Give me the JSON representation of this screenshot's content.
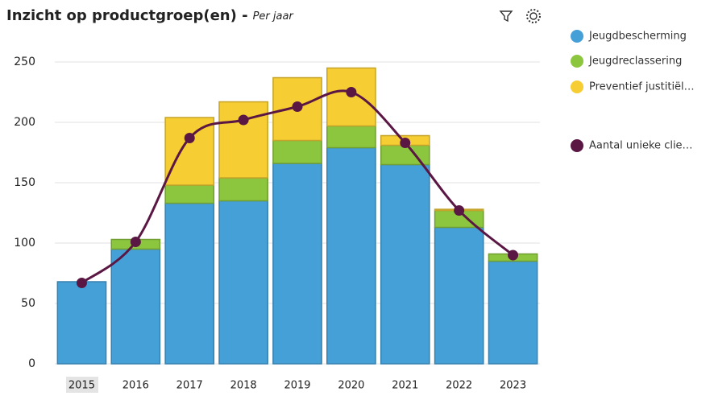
{
  "chart_data": {
    "type": "bar",
    "stacked": true,
    "title": "Inzicht op productgroep(en) -",
    "subtitle": "Per jaar",
    "categories": [
      "2015",
      "2016",
      "2017",
      "2018",
      "2019",
      "2020",
      "2021",
      "2022",
      "2023"
    ],
    "series": [
      {
        "name": "Jeugdbescherming",
        "color": "#46a0d8",
        "values": [
          68,
          95,
          133,
          135,
          166,
          179,
          165,
          113,
          85
        ]
      },
      {
        "name": "Jeugdreclassering",
        "color": "#8cc63f",
        "values": [
          0,
          8,
          15,
          19,
          19,
          18,
          16,
          14,
          6
        ]
      },
      {
        "name": "Preventief justitiël…",
        "color": "#f6cd33",
        "values": [
          0,
          0,
          56,
          63,
          52,
          48,
          8,
          1,
          0
        ]
      },
      {
        "name": "Aantal unieke clie…",
        "type": "line",
        "color": "#5b1744",
        "values": [
          67,
          101,
          187,
          202,
          213,
          225,
          183,
          127,
          90
        ]
      }
    ],
    "ylim": [
      0,
      250
    ],
    "yticks": [
      0,
      50,
      100,
      150,
      200,
      250
    ],
    "grid": true
  }
}
